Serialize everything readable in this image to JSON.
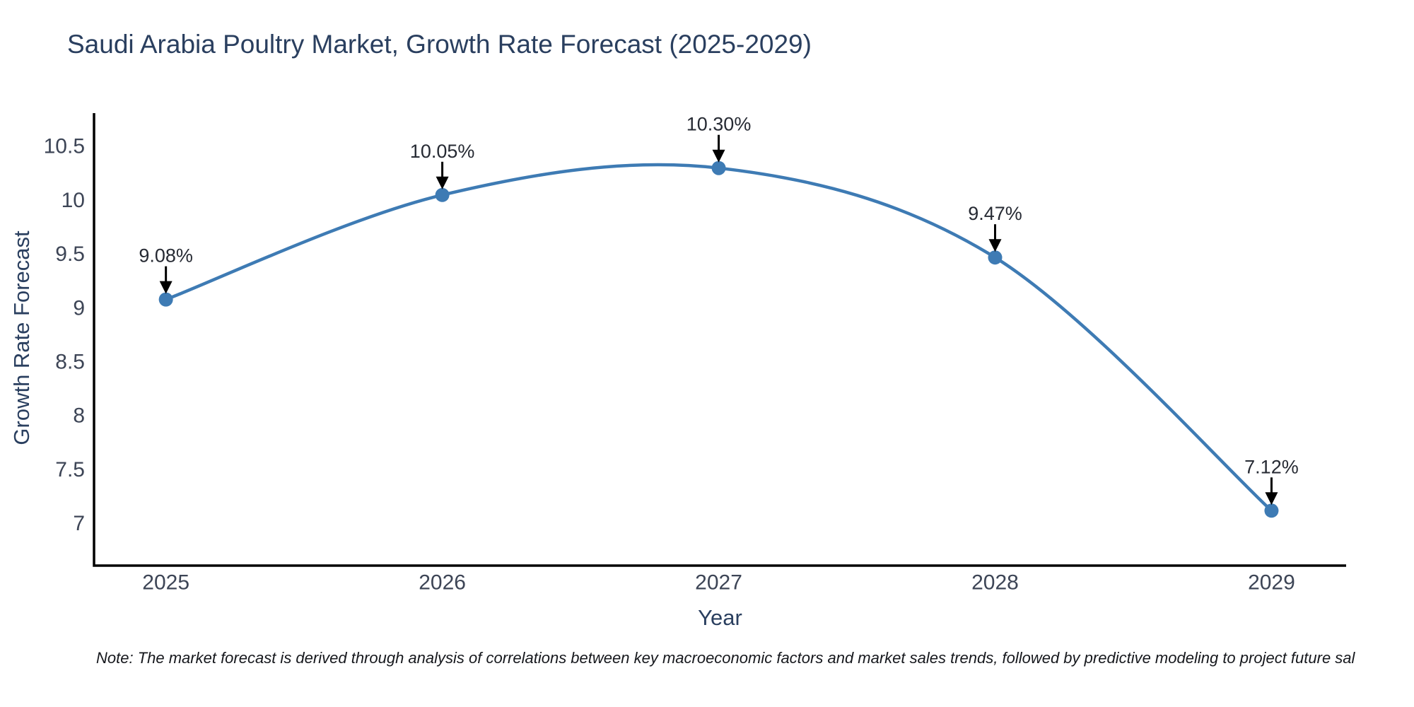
{
  "note": "Note: The market forecast is derived through analysis of correlations between key macroeconomic factors and market sales trends, followed by predictive modeling to project future sal",
  "chart_data": {
    "type": "line",
    "title": "Saudi Arabia Poultry Market, Growth Rate Forecast (2025-2029)",
    "xlabel": "Year",
    "ylabel": "Growth Rate Forecast",
    "x": [
      2025,
      2026,
      2027,
      2028,
      2029
    ],
    "values": [
      9.08,
      10.05,
      10.3,
      9.47,
      7.12
    ],
    "point_labels": [
      "9.08%",
      "10.05%",
      "10.30%",
      "9.47%",
      "7.12%"
    ],
    "yticks": [
      7,
      7.5,
      8,
      8.5,
      9,
      9.5,
      10,
      10.5
    ],
    "xlim": [
      2024.74,
      2029.27
    ],
    "ylim": [
      6.61,
      10.81
    ],
    "grid": false,
    "legend": "none",
    "line_shape": "spline",
    "line_color": "#3e7bb4",
    "marker_color": "#3e7bb4",
    "arrow_color": "#000000",
    "axis_color": "#000000"
  }
}
